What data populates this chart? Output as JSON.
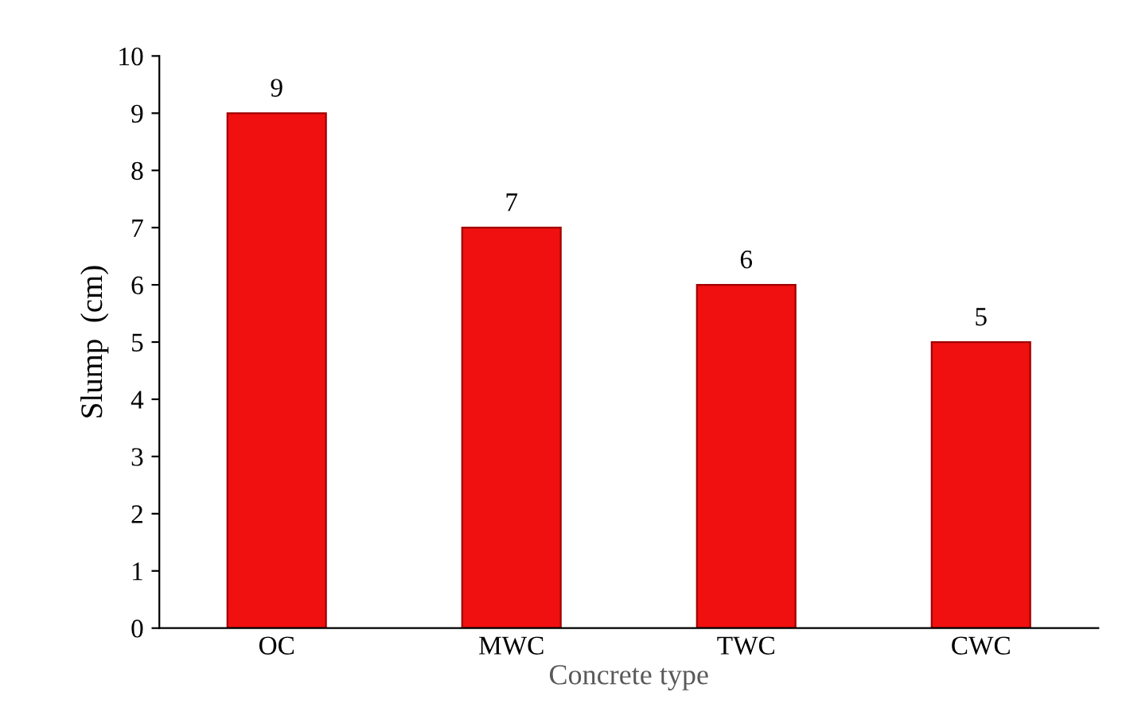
{
  "chart_data": {
    "type": "bar",
    "xlabel": "Concrete type",
    "ylabel": "Slump  (cm)",
    "categories": [
      "OC",
      "MWC",
      "TWC",
      "CWC"
    ],
    "values": [
      9,
      7,
      6,
      5
    ],
    "color": "#f01010",
    "ylim": [
      0,
      10
    ],
    "yticks": [
      0,
      1,
      2,
      3,
      4,
      5,
      6,
      7,
      8,
      9,
      10
    ],
    "data_labels": true,
    "grid": false
  }
}
